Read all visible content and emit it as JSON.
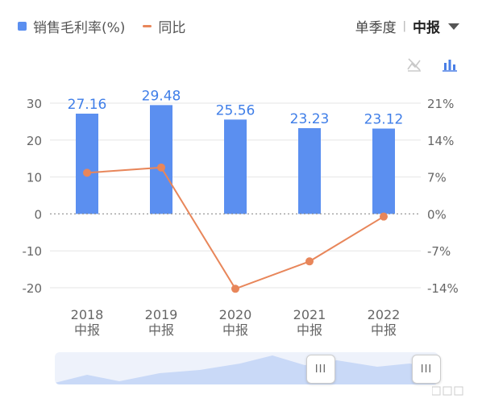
{
  "legend": {
    "bar_label": "销售毛利率(%)",
    "line_label": "同比"
  },
  "period": {
    "option_quarter": "单季度",
    "separator": "|",
    "option_half": "中报"
  },
  "toggles": {
    "line_icon": "line-chart-disabled-icon",
    "bar_icon": "bar-chart-icon"
  },
  "colors": {
    "bar": "#5b8ff0",
    "line": "#e8865a",
    "axis_text": "#666666",
    "grid": "#e6e6e6",
    "label": "#3f7ee8"
  },
  "slider": {
    "handle_glyph": "III"
  },
  "chart_data": {
    "type": "bar",
    "categories": [
      "2018\n中报",
      "2019\n中报",
      "2020\n中报",
      "2021\n中报",
      "2022\n中报"
    ],
    "series": [
      {
        "name": "销售毛利率(%)",
        "type": "bar",
        "axis": "left",
        "values": [
          27.16,
          29.48,
          25.56,
          23.23,
          23.12
        ]
      },
      {
        "name": "同比",
        "type": "line",
        "axis": "right",
        "values": [
          7.8,
          8.8,
          -14.2,
          -9.0,
          -0.5
        ]
      }
    ],
    "bar_value_labels": [
      "27.16",
      "29.48",
      "25.56",
      "23.23",
      "23.12"
    ],
    "left_axis": {
      "ticks": [
        30,
        20,
        10,
        0,
        -10,
        -20
      ],
      "tick_labels": [
        "30",
        "20",
        "10",
        "0",
        "-10",
        "-20"
      ],
      "ylim": [
        -20,
        30
      ]
    },
    "right_axis": {
      "ticks": [
        21,
        14,
        7,
        0,
        -7,
        -14
      ],
      "tick_labels": [
        "21%",
        "14%",
        "7%",
        "0%",
        "-7%",
        "-14%"
      ],
      "ylim": [
        -14,
        21
      ]
    },
    "grid": true,
    "legend_position": "top-left"
  }
}
